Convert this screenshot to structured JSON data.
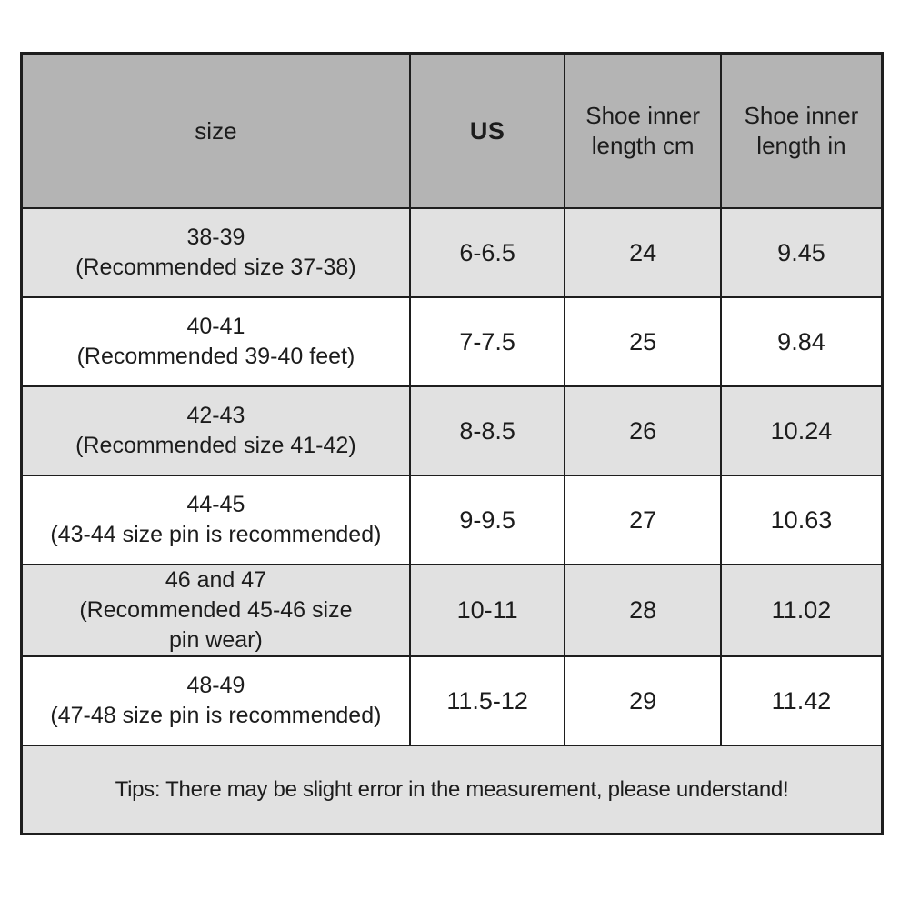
{
  "table": {
    "headers": [
      "size",
      "US",
      "Shoe inner length cm",
      "Shoe inner length in"
    ],
    "rows": [
      {
        "size": "38-39\n(Recommended size 37-38)",
        "us": "6-6.5",
        "cm": "24",
        "in": "9.45"
      },
      {
        "size": "40-41\n(Recommended 39-40 feet)",
        "us": "7-7.5",
        "cm": "25",
        "in": "9.84"
      },
      {
        "size": "42-43\n(Recommended size 41-42)",
        "us": "8-8.5",
        "cm": "26",
        "in": "10.24"
      },
      {
        "size": "44-45\n(43-44 size pin is recommended)",
        "us": "9-9.5",
        "cm": "27",
        "in": "10.63"
      },
      {
        "size": "46 and 47\n(Recommended 45-46 size\npin wear)",
        "us": "10-11",
        "cm": "28",
        "in": "11.02"
      },
      {
        "size": "48-49\n(47-48 size pin is recommended)",
        "us": "11.5-12",
        "cm": "29",
        "in": "11.42"
      }
    ],
    "tips": "Tips: There may be slight error in the measurement, please understand!"
  },
  "colors": {
    "header_bg": "#b4b4b4",
    "alt_row_bg": "#e1e1e1",
    "white_row_bg": "#ffffff",
    "border": "#1e1e1e"
  }
}
